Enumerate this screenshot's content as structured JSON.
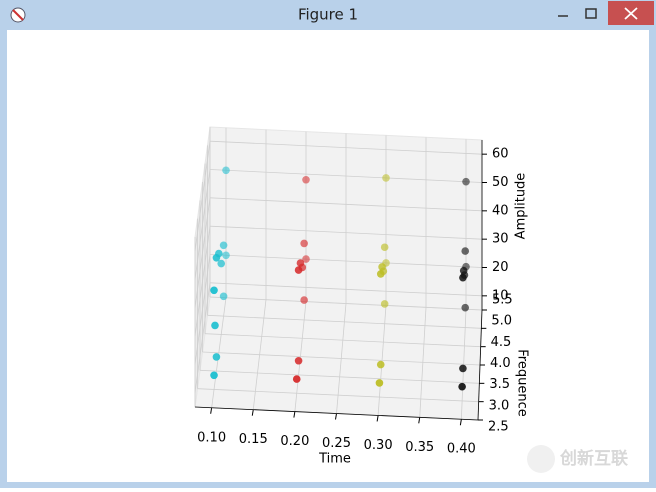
{
  "window": {
    "title": "Figure 1"
  },
  "watermark": "创新互联",
  "chart_data": {
    "type": "scatter3d",
    "xlabel": "Time",
    "ylabel": "Frequence",
    "zlabel": "Amplitude",
    "xlim": [
      0.08,
      0.42
    ],
    "ylim": [
      2.5,
      5.5
    ],
    "zlim": [
      5,
      65
    ],
    "xticks": [
      {
        "value": 0.1,
        "label": "0.10"
      },
      0.15,
      {
        "value": 0.2,
        "label": "0.20"
      },
      0.25,
      {
        "value": 0.3,
        "label": "0.30"
      },
      0.35,
      {
        "value": 0.4,
        "label": "0.40"
      }
    ],
    "yticks": [
      2.5,
      {
        "value": 3,
        "label": "3.0"
      },
      3.5,
      {
        "value": 4,
        "label": "4.0"
      },
      4.5,
      {
        "value": 5,
        "label": "5.0"
      },
      5.5
    ],
    "zticks": [
      10,
      20,
      30,
      40,
      50,
      60
    ],
    "grid": true,
    "series": [
      {
        "color": "#17becf",
        "x": [
          0.1,
          0.1,
          0.1,
          0.1,
          0.1,
          0.1,
          0.1,
          0.1,
          0.1,
          0.1,
          0.1
        ],
        "y": [
          3.0,
          3.5,
          5.0,
          5.5,
          3.0,
          3.5,
          4.0,
          4.5,
          5.0,
          5.5,
          3.2
        ],
        "z": [
          10,
          10,
          12,
          20,
          40,
          45,
          40,
          30,
          30,
          50,
          25
        ]
      },
      {
        "color": "#d62728",
        "x": [
          0.2,
          0.2,
          0.2,
          0.2,
          0.2,
          0.2,
          0.2,
          0.2,
          0.2
        ],
        "y": [
          3.0,
          3.5,
          5.0,
          5.5,
          3.5,
          4.0,
          4.5,
          5.0,
          5.5
        ],
        "z": [
          10,
          10,
          12,
          20,
          42,
          38,
          30,
          32,
          48
        ]
      },
      {
        "color": "#bcbd22",
        "x": [
          0.3,
          0.3,
          0.3,
          0.3,
          0.3,
          0.3,
          0.3,
          0.3,
          0.3
        ],
        "y": [
          3.0,
          3.5,
          5.0,
          5.5,
          3.5,
          4.0,
          4.5,
          5.0,
          5.5
        ],
        "z": [
          10,
          10,
          12,
          20,
          42,
          38,
          30,
          32,
          50
        ]
      },
      {
        "color": "#111111",
        "x": [
          0.4,
          0.4,
          0.4,
          0.4,
          0.4,
          0.4,
          0.4,
          0.4,
          0.4
        ],
        "y": [
          3.0,
          3.5,
          5.0,
          5.5,
          3.5,
          4.0,
          4.5,
          5.0,
          5.5
        ],
        "z": [
          10,
          10,
          12,
          20,
          42,
          38,
          30,
          32,
          50
        ]
      }
    ]
  }
}
